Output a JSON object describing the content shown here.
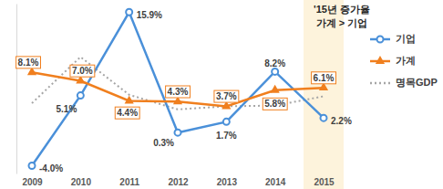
{
  "chart_data": {
    "type": "line",
    "categories": [
      "2009",
      "2010",
      "2011",
      "2012",
      "2013",
      "2014",
      "2015"
    ],
    "series": [
      {
        "name": "기업",
        "color": "#4a90d9",
        "marker": "circle",
        "line_style": "solid",
        "values": [
          -4.0,
          5.1,
          15.9,
          0.3,
          1.7,
          8.2,
          2.2
        ],
        "value_labels": [
          "-4.0%",
          "5.1%",
          "15.9%",
          "0.3%",
          "1.7%",
          "8.2%",
          "2.2%"
        ]
      },
      {
        "name": "가계",
        "color": "#f07f1e",
        "marker": "triangle",
        "line_style": "solid",
        "values": [
          8.1,
          7.0,
          4.4,
          4.3,
          3.7,
          5.8,
          6.1
        ],
        "value_labels": [
          "8.1%",
          "7.0%",
          "4.4%",
          "4.3%",
          "3.7%",
          "5.8%",
          "6.1%"
        ]
      },
      {
        "name": "명목GDP",
        "color": "#a6a6a6",
        "marker": "none",
        "line_style": "dotted",
        "values": [
          4.1,
          10.1,
          5.2,
          3.3,
          3.7,
          3.8,
          5.0
        ]
      }
    ],
    "ylim": [
      -5,
      17
    ],
    "tick_labels": "x",
    "grid": false,
    "legend": "right",
    "data_labels": true,
    "annotation": {
      "text": [
        "'15년 증가율",
        "가계 > 기업"
      ],
      "category": "2015"
    }
  }
}
